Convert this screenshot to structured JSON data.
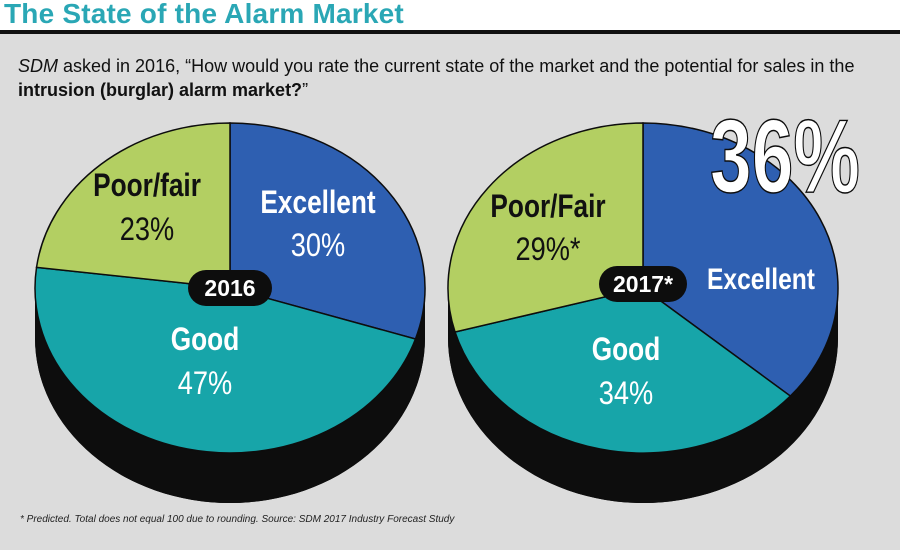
{
  "title": "The State of the Alarm Market",
  "question": {
    "source": "SDM",
    "pre": " asked in 2016, “How would you rate the current state of the market and the potential for sales in the ",
    "bold": "intrusion (burglar) alarm market?",
    "post": "”"
  },
  "footnote": "* Predicted. Total does not equal 100 due to rounding. Source: SDM 2017 Industry Forecast Study",
  "colors": {
    "excellent": "#2e5fb1",
    "good": "#17a5a9",
    "poor_fair": "#b3cf62",
    "shadow": "#0d0d0d",
    "title": "#2aa7b5"
  },
  "chart_data": [
    {
      "type": "pie",
      "center_label": "2016",
      "slices": [
        {
          "label": "Excellent",
          "value": 30,
          "value_label": "30%"
        },
        {
          "label": "Good",
          "value": 47,
          "value_label": "47%"
        },
        {
          "label": "Poor/fair",
          "value": 23,
          "value_label": "23%"
        }
      ]
    },
    {
      "type": "pie",
      "center_label": "2017*",
      "slices": [
        {
          "label": "Excellent",
          "value": 36,
          "value_label": "36%"
        },
        {
          "label": "Good",
          "value": 34,
          "value_label": "34%"
        },
        {
          "label": "Poor/Fair",
          "value": 29,
          "value_label": "29%*"
        }
      ]
    }
  ]
}
